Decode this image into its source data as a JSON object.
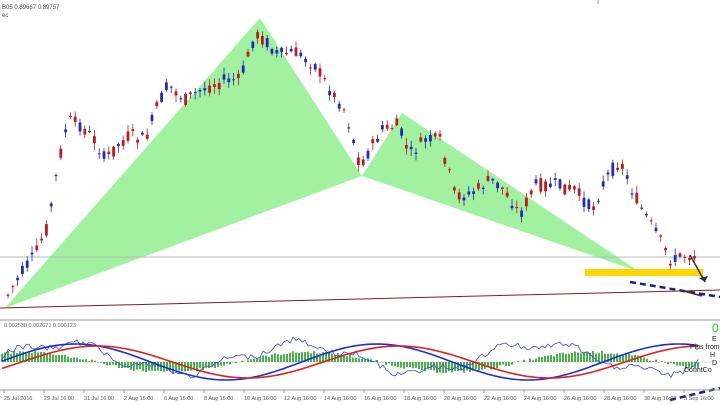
{
  "header": {
    "symbol_line": "B05 0.89667 0.89757",
    "sub_line": "ec"
  },
  "indicator": {
    "values_line": "0.002538  0.002671  0.000123"
  },
  "overlay": {
    "big_digit": "0",
    "lines": [
      "E",
      "Pips from",
      "H",
      "D",
      "CountCo"
    ]
  },
  "x_labels": [
    "25 Jul 2016",
    "29 Jul 16:00",
    "31 Jul 16:00",
    "2 Aug 16:00",
    "6 Aug 16:00",
    "8 Aug 16:00",
    "10 Aug 16:00",
    "12 Aug 16:00",
    "14 Aug 16:00",
    "16 Aug 16:00",
    "18 Aug 16:00",
    "20 Aug 16:00",
    "22 Aug 16:00",
    "24 Aug 16:00",
    "26 Aug 16:00",
    "28 Aug 16:00",
    "30 Aug 16:00",
    "3 Sep 16:00",
    "5 Sep 16:00"
  ],
  "colors": {
    "pattern_fill": "#90ee90",
    "bull_candle": "#1f2bb8",
    "bear_candle": "#b81c1c",
    "target_zone": "#ffd700",
    "trend_line": "#8b1a1a",
    "macd_hist": "#1e9e1e",
    "signal_blue": "#1c2fd6",
    "signal_red": "#e02020",
    "accent_green": "#22cc22"
  }
}
